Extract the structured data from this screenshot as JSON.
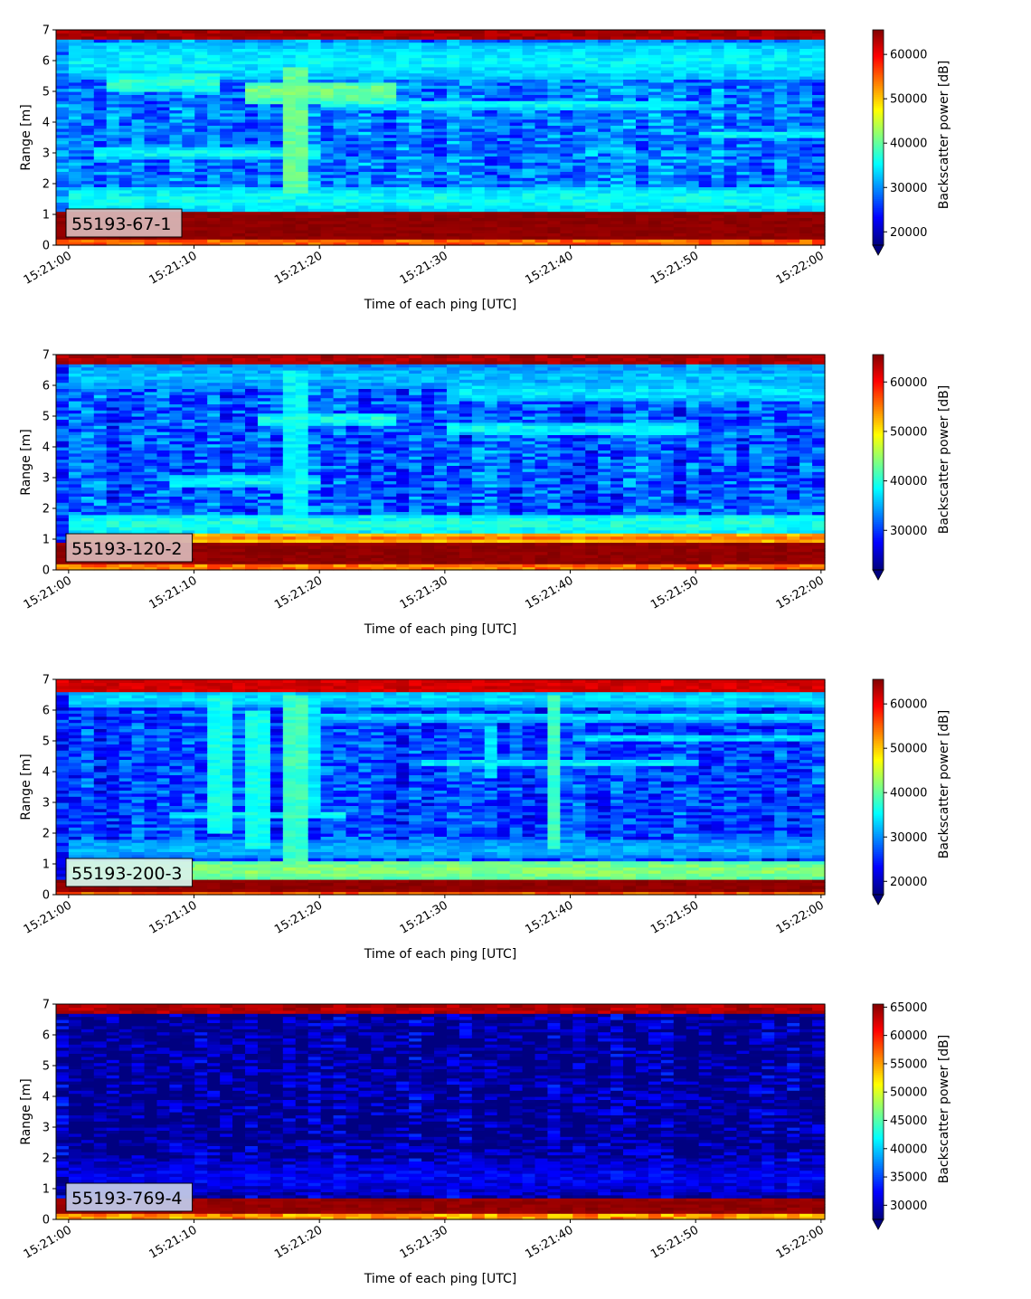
{
  "chart_data": [
    {
      "type": "heatmap",
      "label": "55193-67-1",
      "xlabel": "Time of each ping [UTC]",
      "ylabel": "Range [m]",
      "x_ticks": [
        "15:21:00",
        "15:21:10",
        "15:21:20",
        "15:21:30",
        "15:21:40",
        "15:21:50",
        "15:22:00"
      ],
      "xlim_seconds": [
        -1,
        60.3
      ],
      "ylim": [
        0,
        7
      ],
      "y_ticks": [
        0,
        1,
        2,
        3,
        4,
        5,
        6,
        7
      ],
      "colorbar": {
        "label": "Backscatter power [dB]",
        "range": [
          17000,
          65535
        ],
        "ticks": [
          20000,
          30000,
          40000,
          50000,
          60000
        ],
        "extend": "min",
        "colormap": "jet"
      },
      "label_bg": "#d8b4b4",
      "features": {
        "bottom_band": [
          0.22,
          1.15,
          65535
        ],
        "top_band": [
          6.75,
          7.0,
          65000
        ],
        "background": 29000,
        "layers": [
          {
            "y": 3.0,
            "t0": 2,
            "t1": 20,
            "v": 36000,
            "w": 0.18
          },
          {
            "y": 4.6,
            "t0": 20,
            "t1": 50,
            "v": 36000,
            "w": 0.15
          },
          {
            "y": 5.0,
            "t0": 14,
            "t1": 26,
            "v": 41000,
            "w": 0.35
          },
          {
            "y": 5.3,
            "t0": 3,
            "t1": 12,
            "v": 38000,
            "w": 0.3
          },
          {
            "y": 3.6,
            "t0": 50,
            "t1": 61,
            "v": 36000,
            "w": 0.12
          },
          {
            "y": 1.5,
            "t0": 0,
            "t1": 61,
            "v": 36000,
            "w": 0.4
          },
          {
            "y": 6.0,
            "t0": 0,
            "t1": 61,
            "v": 35000,
            "w": 0.6
          }
        ],
        "streaks": [
          {
            "t": 18,
            "y0": 1.7,
            "y1": 5.8,
            "v": 40000
          }
        ]
      }
    },
    {
      "type": "heatmap",
      "label": "55193-120-2",
      "xlabel": "Time of each ping [UTC]",
      "ylabel": "Range [m]",
      "x_ticks": [
        "15:21:00",
        "15:21:10",
        "15:21:20",
        "15:21:30",
        "15:21:40",
        "15:21:50",
        "15:22:00"
      ],
      "xlim_seconds": [
        -1,
        60.3
      ],
      "ylim": [
        0,
        7
      ],
      "y_ticks": [
        0,
        1,
        2,
        3,
        4,
        5,
        6,
        7
      ],
      "colorbar": {
        "label": "Backscatter power [dB]",
        "range": [
          22000,
          65535
        ],
        "ticks": [
          30000,
          40000,
          50000,
          60000
        ],
        "extend": "min",
        "colormap": "jet"
      },
      "label_bg": "#d8b4b4",
      "features": {
        "bottom_band": [
          0.22,
          0.95,
          65535
        ],
        "top_band": [
          6.75,
          7.0,
          65000
        ],
        "background": 31000,
        "layers": [
          {
            "y": 1.05,
            "t0": 0,
            "t1": 61,
            "v": 55000,
            "w": 0.12
          },
          {
            "y": 1.5,
            "t0": 0,
            "t1": 61,
            "v": 40000,
            "w": 0.35
          },
          {
            "y": 2.9,
            "t0": 8,
            "t1": 20,
            "v": 39000,
            "w": 0.2
          },
          {
            "y": 4.6,
            "t0": 30,
            "t1": 50,
            "v": 39000,
            "w": 0.18
          },
          {
            "y": 4.9,
            "t0": 15,
            "t1": 26,
            "v": 40000,
            "w": 0.2
          },
          {
            "y": 5.8,
            "t0": 30,
            "t1": 61,
            "v": 38000,
            "w": 0.3
          },
          {
            "y": 6.3,
            "t0": 0,
            "t1": 61,
            "v": 36000,
            "w": 0.4
          }
        ],
        "streaks": [
          {
            "t": 18,
            "y0": 1.7,
            "y1": 6.5,
            "v": 38000
          }
        ]
      }
    },
    {
      "type": "heatmap",
      "label": "55193-200-3",
      "xlabel": "Time of each ping [UTC]",
      "ylabel": "Range [m]",
      "x_ticks": [
        "15:21:00",
        "15:21:10",
        "15:21:20",
        "15:21:30",
        "15:21:40",
        "15:21:50",
        "15:22:00"
      ],
      "xlim_seconds": [
        -1,
        60.3
      ],
      "ylim": [
        0,
        7
      ],
      "y_ticks": [
        0,
        1,
        2,
        3,
        4,
        5,
        6,
        7
      ],
      "colorbar": {
        "label": "Backscatter power [dB]",
        "range": [
          17000,
          65535
        ],
        "ticks": [
          20000,
          30000,
          40000,
          50000,
          60000
        ],
        "extend": "min",
        "colormap": "jet"
      },
      "label_bg": "#d6f3e8",
      "features": {
        "bottom_band": [
          0.12,
          0.45,
          65535
        ],
        "top_band": [
          6.6,
          7.0,
          63000
        ],
        "background": 26000,
        "layers": [
          {
            "y": 0.8,
            "t0": 0,
            "t1": 61,
            "v": 42000,
            "w": 0.35
          },
          {
            "y": 1.5,
            "t0": 0,
            "t1": 61,
            "v": 32000,
            "w": 0.3
          },
          {
            "y": 2.6,
            "t0": 8,
            "t1": 22,
            "v": 36000,
            "w": 0.12
          },
          {
            "y": 4.3,
            "t0": 28,
            "t1": 50,
            "v": 36000,
            "w": 0.1
          },
          {
            "y": 5.1,
            "t0": 40,
            "t1": 61,
            "v": 35000,
            "w": 0.1
          },
          {
            "y": 5.8,
            "t0": 20,
            "t1": 61,
            "v": 34000,
            "w": 0.15
          },
          {
            "y": 6.4,
            "t0": 0,
            "t1": 61,
            "v": 34000,
            "w": 0.3
          }
        ],
        "streaks": [
          {
            "t": 12,
            "y0": 2.0,
            "y1": 6.5,
            "v": 36000
          },
          {
            "t": 15,
            "y0": 1.5,
            "y1": 6.0,
            "v": 36000
          },
          {
            "t": 18,
            "y0": 1.0,
            "y1": 6.5,
            "v": 38000
          },
          {
            "t": 20,
            "y0": 2.5,
            "y1": 6.5,
            "v": 34000
          },
          {
            "t": 34,
            "y0": 3.8,
            "y1": 5.5,
            "v": 34000
          },
          {
            "t": 39,
            "y0": 1.5,
            "y1": 6.5,
            "v": 38000
          }
        ]
      }
    },
    {
      "type": "heatmap",
      "label": "55193-769-4",
      "xlabel": "Time of each ping [UTC]",
      "ylabel": "Range [m]",
      "x_ticks": [
        "15:21:00",
        "15:21:10",
        "15:21:20",
        "15:21:30",
        "15:21:40",
        "15:21:50",
        "15:22:00"
      ],
      "xlim_seconds": [
        -1,
        60.3
      ],
      "ylim": [
        0,
        7
      ],
      "y_ticks": [
        0,
        1,
        2,
        3,
        4,
        5,
        6,
        7
      ],
      "colorbar": {
        "label": "Backscatter power [dB]",
        "range": [
          27500,
          65535
        ],
        "ticks": [
          30000,
          35000,
          40000,
          45000,
          50000,
          55000,
          60000,
          65000
        ],
        "extend": "min",
        "colormap": "jet"
      },
      "label_bg": "#c0c8e8",
      "features": {
        "bottom_band": [
          0.22,
          0.65,
          65535
        ],
        "top_band": [
          6.75,
          7.0,
          65000
        ],
        "background": 28500,
        "layers": [
          {
            "y": 0.68,
            "t0": 0,
            "t1": 61,
            "v": 45000,
            "w": 0.04
          },
          {
            "y": 1.4,
            "t0": 0,
            "t1": 61,
            "v": 32000,
            "w": 0.6
          },
          {
            "y": 6.72,
            "t0": 0,
            "t1": 61,
            "v": 42000,
            "w": 0.03
          }
        ],
        "streaks": []
      }
    }
  ]
}
